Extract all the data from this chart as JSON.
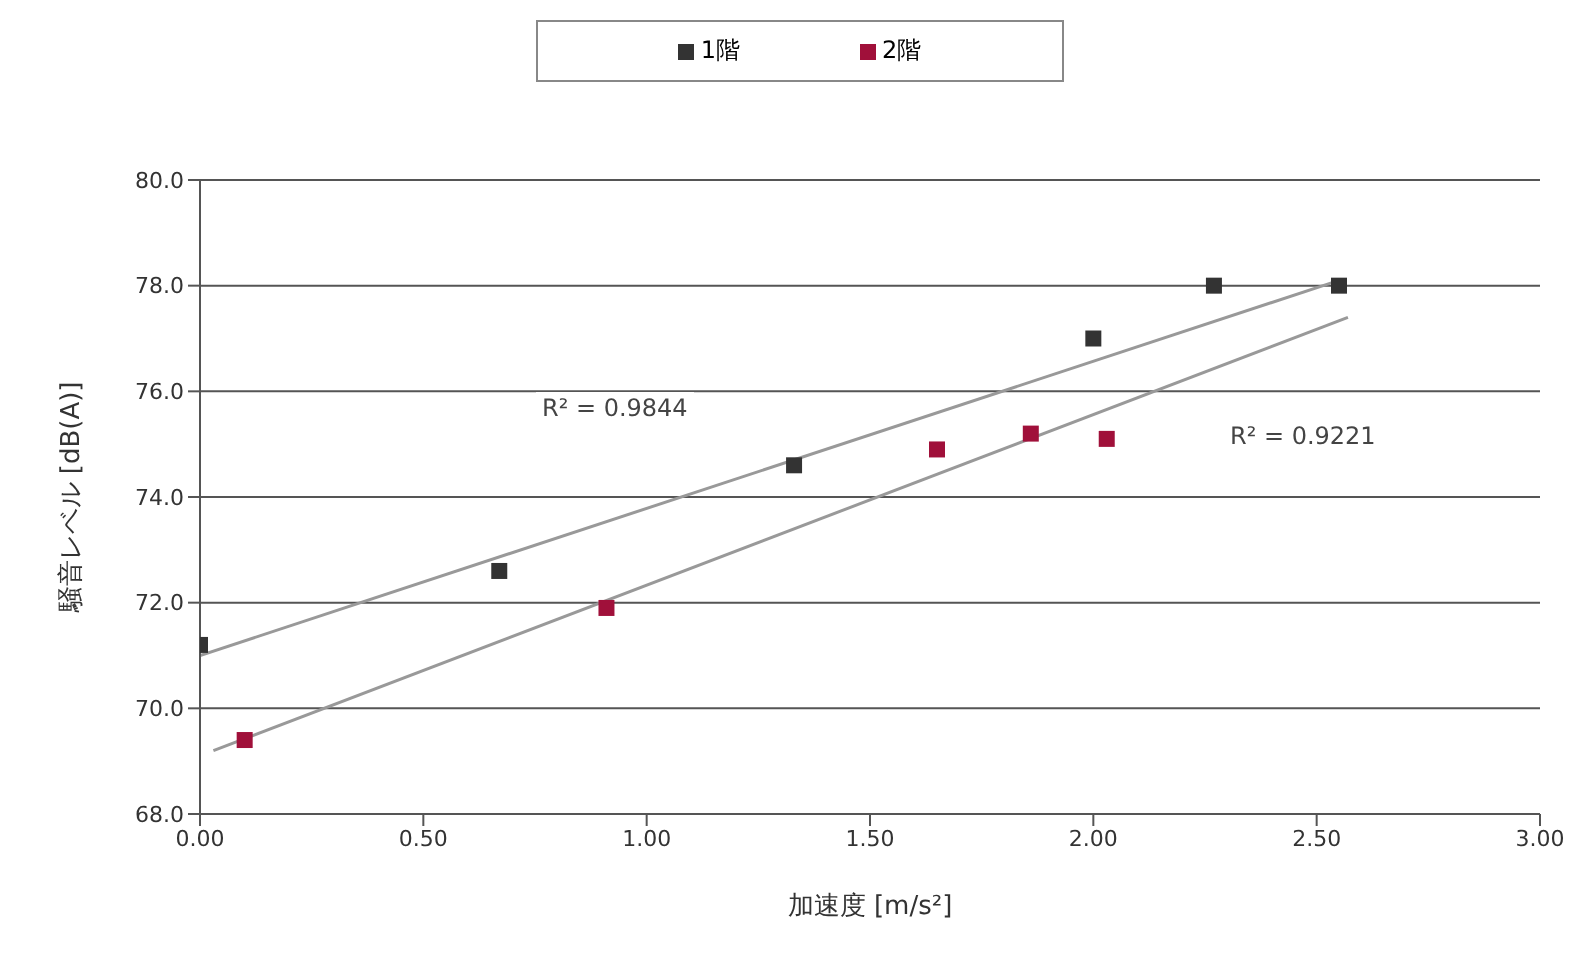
{
  "chart_data": {
    "type": "scatter",
    "xlabel": "加速度 [m/s²]",
    "ylabel": "騒音レベル [dB(A)]",
    "xlim": [
      0,
      3
    ],
    "ylim": [
      68,
      80
    ],
    "xticks": [
      {
        "value": 0,
        "label": "0.00"
      },
      {
        "value": 0.5,
        "label": "0.50"
      },
      {
        "value": 1,
        "label": "1.00"
      },
      {
        "value": 1.5,
        "label": "1.50"
      },
      {
        "value": 2,
        "label": "2.00"
      },
      {
        "value": 2.5,
        "label": "2.50"
      },
      {
        "value": 3,
        "label": "3.00"
      }
    ],
    "yticks": [
      {
        "value": 68,
        "label": "68.0"
      },
      {
        "value": 70,
        "label": "70.0"
      },
      {
        "value": 72,
        "label": "72.0"
      },
      {
        "value": 74,
        "label": "74.0"
      },
      {
        "value": 76,
        "label": "76.0"
      },
      {
        "value": 78,
        "label": "78.0"
      },
      {
        "value": 80,
        "label": "80.0"
      }
    ],
    "grid": "y",
    "legend": "top",
    "marker": "square",
    "series": [
      {
        "name": "1階",
        "color": "#333333",
        "x": [
          0.0,
          0.67,
          1.33,
          2.0,
          2.27,
          2.55
        ],
        "values": [
          71.2,
          72.6,
          74.6,
          77.0,
          78.0,
          78.0
        ]
      },
      {
        "name": "2階",
        "color": "#a0103a",
        "x": [
          0.1,
          0.91,
          1.65,
          1.86,
          2.03
        ],
        "values": [
          69.4,
          71.9,
          74.9,
          75.2,
          75.1
        ]
      },
      {
        "type": "line",
        "color": "#999999",
        "marker": "none",
        "x": [
          0.0,
          2.55
        ],
        "values": [
          71.0,
          78.1
        ]
      },
      {
        "type": "line",
        "color": "#999999",
        "marker": "none",
        "x": [
          0.03,
          2.57
        ],
        "values": [
          69.2,
          77.4
        ]
      }
    ],
    "annotations": [
      "R² = 0.9844",
      "R² = 0.9221"
    ]
  }
}
